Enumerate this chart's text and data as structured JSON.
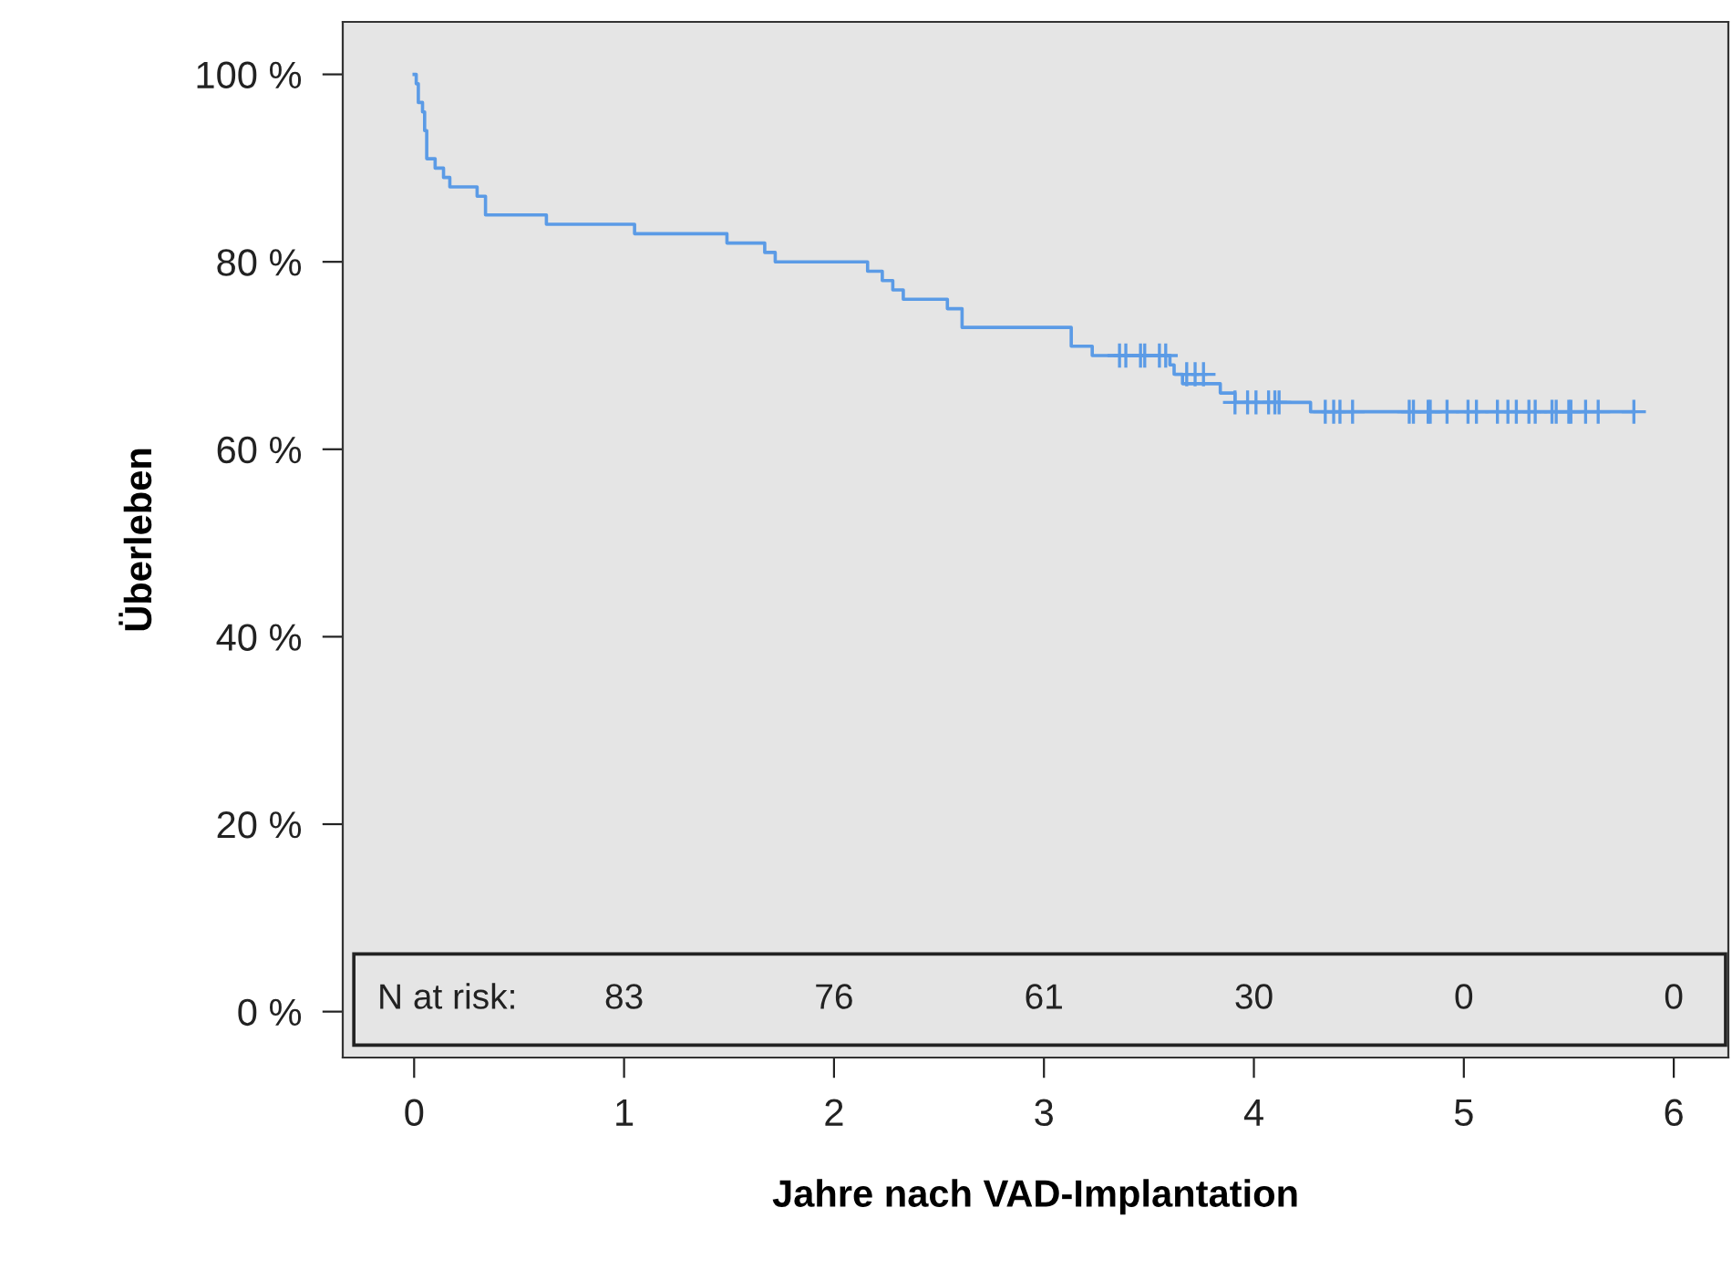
{
  "chart_data": {
    "type": "step",
    "xlabel": "Jahre nach VAD-Implantation",
    "ylabel": "Überleben",
    "xlim": [
      -0.34,
      6.26
    ],
    "ylim": [
      -4.9,
      105.6
    ],
    "xticks": [
      0,
      1,
      2,
      3,
      4,
      5,
      6
    ],
    "yticks": [
      {
        "value": 0,
        "label": "0 %"
      },
      {
        "value": 20,
        "label": "20 %"
      },
      {
        "value": 40,
        "label": "40 %"
      },
      {
        "value": 60,
        "label": "60 %"
      },
      {
        "value": 80,
        "label": "80 %"
      },
      {
        "value": 100,
        "label": "100 %"
      }
    ],
    "grid": false,
    "legend": false,
    "series": [
      {
        "color": "#5b9be6",
        "marker": "none",
        "x": [
          0,
          0.01,
          0.02,
          0.04,
          0.05,
          0.06,
          0.1,
          0.14,
          0.17,
          0.3,
          0.34,
          0.63,
          1.05,
          1.49,
          1.67,
          1.72,
          2.16,
          2.23,
          2.28,
          2.33,
          2.54,
          2.61,
          3.13,
          3.23,
          3.6,
          3.62,
          3.66,
          3.84,
          3.91,
          4.27,
          4.31,
          5.81
        ],
        "values": [
          100,
          99,
          97,
          96,
          94,
          91,
          90,
          89,
          88,
          87,
          85,
          84,
          83,
          82,
          81,
          80,
          79,
          78,
          77,
          76,
          75,
          73,
          71,
          70,
          69,
          68,
          67,
          66,
          65,
          64,
          64,
          64
        ]
      },
      {
        "type": "scatter",
        "color": "#5b9be6",
        "marker": "cross",
        "x": [
          3.36,
          3.39,
          3.46,
          3.48,
          3.55,
          3.58,
          3.68,
          3.72,
          3.76,
          3.91,
          3.97,
          4.01,
          4.07,
          4.1,
          4.12,
          4.34,
          4.38,
          4.41,
          4.47,
          4.74,
          4.76,
          4.83,
          4.84,
          4.92,
          5.02,
          5.06,
          5.16,
          5.21,
          5.25,
          5.31,
          5.34,
          5.42,
          5.44,
          5.5,
          5.51,
          5.58,
          5.64,
          5.81
        ],
        "values": [
          70,
          70,
          70,
          70,
          70,
          70,
          68,
          68,
          68,
          65,
          65,
          65,
          65,
          65,
          65,
          64,
          64,
          64,
          64,
          64,
          64,
          64,
          64,
          64,
          64,
          64,
          64,
          64,
          64,
          64,
          64,
          64,
          64,
          64,
          64,
          64,
          64,
          64
        ]
      }
    ],
    "annotations": [
      "N at risk:",
      "83",
      "76",
      "61",
      "30",
      "0",
      "0"
    ]
  }
}
